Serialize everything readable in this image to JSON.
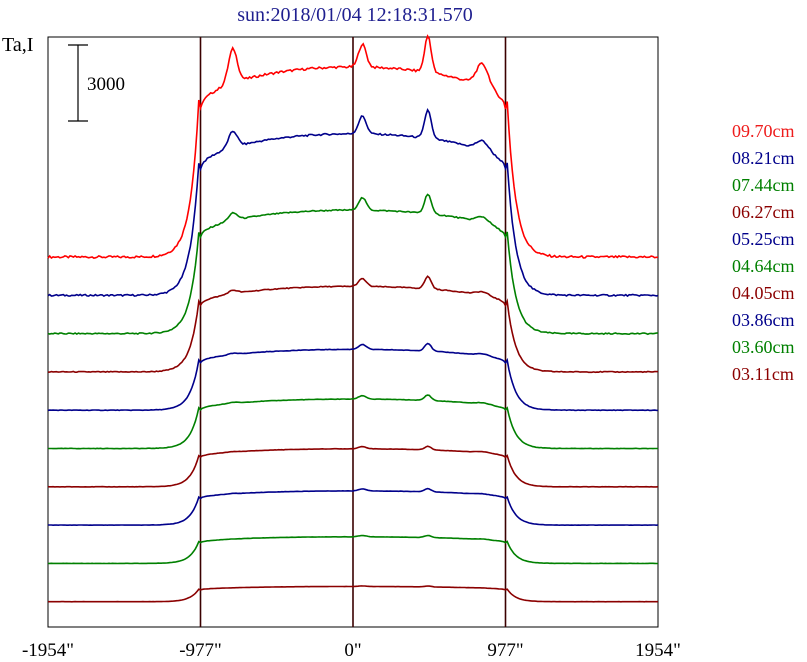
{
  "chart_data": {
    "type": "line",
    "title": "sun:2018/01/04 12:18:31.570",
    "ylabel": "Ta,I",
    "scale_bar_label": "3000",
    "x_ticks": [
      {
        "value": -1954,
        "label": "-1954\""
      },
      {
        "value": -977,
        "label": "-977\""
      },
      {
        "value": 0,
        "label": "0\""
      },
      {
        "value": 977,
        "label": "977\""
      },
      {
        "value": 1954,
        "label": "1954\""
      }
    ],
    "xlim": [
      -1954,
      1954
    ],
    "vertical_lines": [
      -977,
      0,
      977
    ],
    "grid": false,
    "legend_position": "right",
    "series": [
      {
        "name": "09.70cm",
        "color": "#ff0000",
        "baseline": 0,
        "peak": 1.0,
        "west_bump": 0.18,
        "limb_bump": 0.12,
        "center_bump": 0.12,
        "noise": 0.012
      },
      {
        "name": "08.21cm",
        "color": "#00008b",
        "baseline": 1,
        "peak": 0.85,
        "west_bump": 0.1,
        "limb_bump": 0.06,
        "center_bump": 0.11,
        "noise": 0.01
      },
      {
        "name": "07.44cm",
        "color": "#008000",
        "baseline": 2,
        "peak": 0.65,
        "west_bump": 0.06,
        "limb_bump": 0.05,
        "center_bump": 0.1,
        "noise": 0.01
      },
      {
        "name": "06.27cm",
        "color": "#8b0000",
        "baseline": 3,
        "peak": 0.45,
        "west_bump": 0.04,
        "limb_bump": 0.04,
        "center_bump": 0.09,
        "noise": 0.01
      },
      {
        "name": "05.25cm",
        "color": "#00008b",
        "baseline": 4,
        "peak": 0.32,
        "west_bump": 0.02,
        "limb_bump": 0.03,
        "center_bump": 0.08,
        "noise": 0.008
      },
      {
        "name": "04.64cm",
        "color": "#008000",
        "baseline": 5,
        "peak": 0.26,
        "west_bump": 0.02,
        "limb_bump": 0.03,
        "center_bump": 0.07,
        "noise": 0.008
      },
      {
        "name": "04.05cm",
        "color": "#8b0000",
        "baseline": 6,
        "peak": 0.2,
        "west_bump": 0.01,
        "limb_bump": 0.03,
        "center_bump": 0.06,
        "noise": 0.008
      },
      {
        "name": "03.86cm",
        "color": "#00008b",
        "baseline": 7,
        "peak": 0.18,
        "west_bump": 0.01,
        "limb_bump": 0.02,
        "center_bump": 0.06,
        "noise": 0.008
      },
      {
        "name": "03.60cm",
        "color": "#008000",
        "baseline": 8,
        "peak": 0.14,
        "west_bump": 0.0,
        "limb_bump": 0.02,
        "center_bump": 0.05,
        "noise": 0.008
      },
      {
        "name": "03.11cm",
        "color": "#8b0000",
        "baseline": 9,
        "peak": 0.08,
        "west_bump": 0.0,
        "limb_bump": 0.01,
        "center_bump": 0.04,
        "noise": 0.008
      }
    ]
  }
}
